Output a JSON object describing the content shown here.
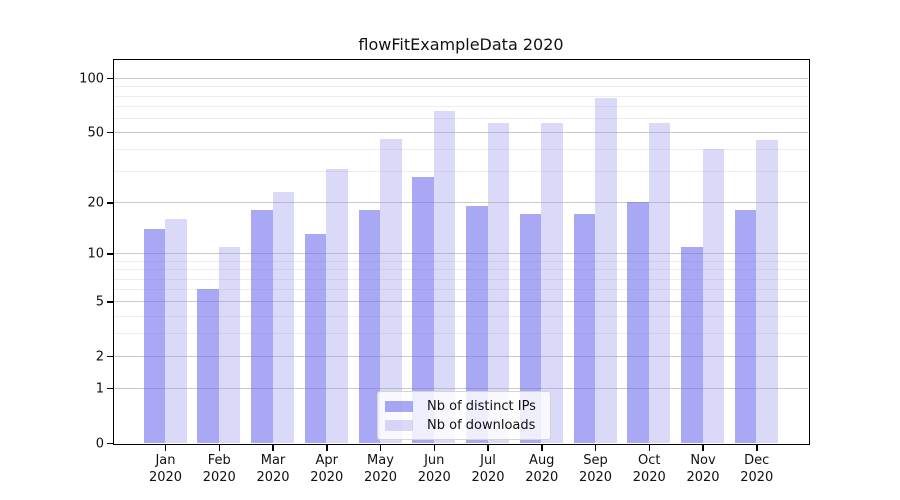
{
  "chart_data": {
    "type": "bar",
    "title": "flowFitExampleData 2020",
    "categories": [
      "Jan 2020",
      "Feb 2020",
      "Mar 2020",
      "Apr 2020",
      "May 2020",
      "Jun 2020",
      "Jul 2020",
      "Aug 2020",
      "Sep 2020",
      "Oct 2020",
      "Nov 2020",
      "Dec 2020"
    ],
    "x_tick_lines": [
      [
        "Jan",
        "2020"
      ],
      [
        "Feb",
        "2020"
      ],
      [
        "Mar",
        "2020"
      ],
      [
        "Apr",
        "2020"
      ],
      [
        "May",
        "2020"
      ],
      [
        "Jun",
        "2020"
      ],
      [
        "Jul",
        "2020"
      ],
      [
        "Aug",
        "2020"
      ],
      [
        "Sep",
        "2020"
      ],
      [
        "Oct",
        "2020"
      ],
      [
        "Nov",
        "2020"
      ],
      [
        "Dec",
        "2020"
      ]
    ],
    "series": [
      {
        "name": "Nb of distinct IPs",
        "values": [
          14,
          6,
          18,
          13,
          18,
          28,
          19,
          17,
          17,
          20,
          11,
          18
        ]
      },
      {
        "name": "Nb of downloads",
        "values": [
          16,
          11,
          23,
          31,
          46,
          66,
          56,
          56,
          78,
          56,
          40,
          45
        ]
      }
    ],
    "xlabel": "",
    "ylabel": "",
    "yscale": "symlog(ln(1+x))",
    "ylim": [
      0,
      126
    ],
    "y_ticks": [
      0,
      1,
      2,
      5,
      10,
      20,
      50,
      100
    ],
    "y_minor_gridlines": [
      3,
      4,
      6,
      7,
      8,
      9,
      30,
      40,
      60,
      70,
      80,
      90
    ],
    "grid": true,
    "legend_position": "inside-bottom-center"
  },
  "legend": {
    "items": [
      {
        "label": "Nb of distinct IPs"
      },
      {
        "label": "Nb of downloads"
      }
    ]
  },
  "colors": {
    "bar_distinct_ips": "rgba(115,115,237,0.62)",
    "bar_downloads": "rgba(149,149,235,0.35)",
    "major_grid": "#c9c9c9",
    "minor_grid": "#ededed",
    "axis_frame": "#000000",
    "text": "#111111",
    "legend_border": "#d4d4d4",
    "legend_bg": "rgba(255,255,255,0.8)"
  }
}
